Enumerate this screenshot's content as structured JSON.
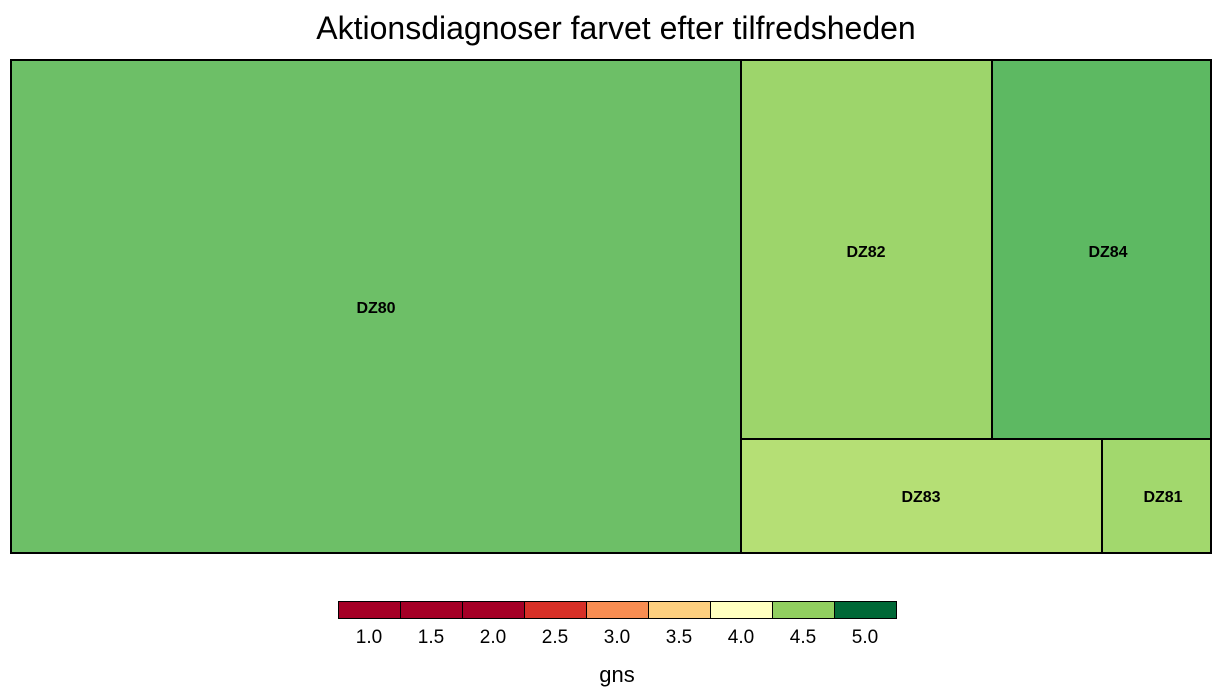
{
  "chart_data": {
    "type": "treemap",
    "title": "Aktionsdiagnoser farvet efter tilfredsheden",
    "tiles": [
      {
        "label": "DZ80",
        "gns": 4.6,
        "color": "#6dbf67"
      },
      {
        "label": "DZ82",
        "gns": 4.4,
        "color": "#9dd56b"
      },
      {
        "label": "DZ84",
        "gns": 4.7,
        "color": "#5db962"
      },
      {
        "label": "DZ83",
        "gns": 4.3,
        "color": "#b5df75"
      },
      {
        "label": "DZ81",
        "gns": 4.4,
        "color": "#a2d86d"
      }
    ],
    "legend": {
      "title": "gns",
      "ticks": [
        "1.0",
        "1.5",
        "2.0",
        "2.5",
        "3.0",
        "3.5",
        "4.0",
        "4.5",
        "5.0"
      ],
      "colors": [
        "#a50026",
        "#a50026",
        "#a50026",
        "#d73027",
        "#f46d43",
        "#fdae61",
        "#fee08b",
        "#ffffbf",
        "#91cf60",
        "#006837"
      ],
      "swatch_colors": [
        "#a50026",
        "#a50026",
        "#a50026",
        "#d73027",
        "#f88d52",
        "#fdcf7f",
        "#ffffc0",
        "#91cf60",
        "#006837"
      ]
    }
  }
}
